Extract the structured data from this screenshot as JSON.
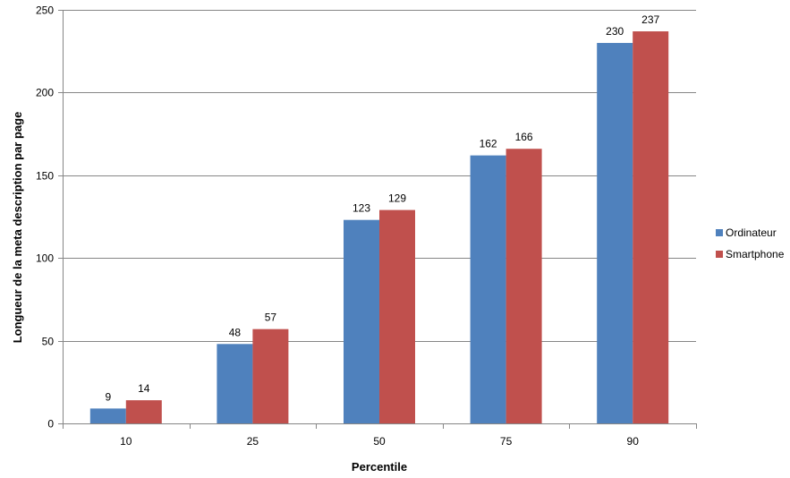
{
  "chart_data": {
    "type": "bar",
    "categories": [
      "10",
      "25",
      "50",
      "75",
      "90"
    ],
    "series": [
      {
        "name": "Ordinateur",
        "color": "#4F81BD",
        "values": [
          9,
          48,
          123,
          162,
          230
        ]
      },
      {
        "name": "Smartphone",
        "color": "#C0504D",
        "values": [
          14,
          57,
          129,
          166,
          237
        ]
      }
    ],
    "xlabel": "Percentile",
    "ylabel": "Longueur de la meta description par page",
    "ylim": [
      0,
      250
    ],
    "yticks": [
      0,
      50,
      100,
      150,
      200,
      250
    ],
    "grid": true,
    "legend_position": "right"
  }
}
